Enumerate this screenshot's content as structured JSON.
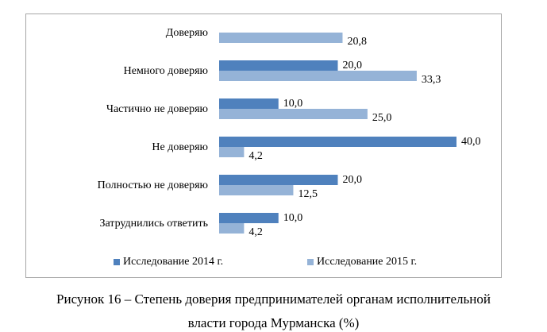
{
  "chart_data": {
    "type": "bar",
    "orientation": "horizontal",
    "categories": [
      "Доверяю",
      "Немного доверяю",
      "Частично не доверяю",
      "Не доверяю",
      "Полностью не доверяю",
      "Затруднились ответить"
    ],
    "series": [
      {
        "name": "Исследование 2014 г.",
        "color": "#4f81bd",
        "values": [
          null,
          20.0,
          10.0,
          40.0,
          20.0,
          10.0
        ],
        "labels": [
          "",
          "20,0",
          "10,0",
          "40,0",
          "20,0",
          "10,0"
        ]
      },
      {
        "name": "Исследование 2015 г.",
        "color": "#95b3d7",
        "values": [
          20.8,
          33.3,
          25.0,
          4.2,
          12.5,
          4.2
        ],
        "labels": [
          "20,8",
          "33,3",
          "25,0",
          "4,2",
          "12,5",
          "4,2"
        ]
      }
    ],
    "xlim": [
      0,
      40
    ],
    "grid": false,
    "legend": "bottom"
  },
  "caption": {
    "line1": "Рисунок 16 – Степень доверия предпринимателей органам исполнительной",
    "line2": "власти города Мурманска (%)"
  }
}
